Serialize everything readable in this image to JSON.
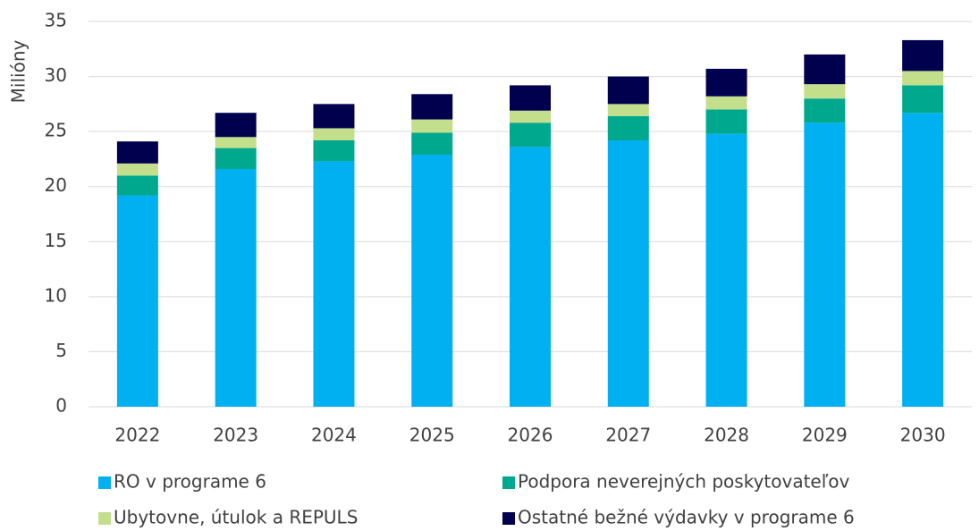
{
  "chart_data": {
    "type": "stacked_bar",
    "y_label": "Milióny",
    "categories": [
      "2022",
      "2023",
      "2024",
      "2025",
      "2026",
      "2027",
      "2028",
      "2029",
      "2030"
    ],
    "series": [
      {
        "name": "RO v programe 6",
        "color": "#00b0f0",
        "values": [
          19.2,
          21.6,
          22.3,
          22.9,
          23.6,
          24.2,
          24.8,
          25.8,
          26.7
        ]
      },
      {
        "name": "Podpora neverejných poskytovateľov",
        "color": "#00a88e",
        "values": [
          1.8,
          1.9,
          1.9,
          2.0,
          2.2,
          2.2,
          2.2,
          2.2,
          2.5
        ]
      },
      {
        "name": "Ubytovne, útulok a REPULS",
        "color": "#c3df8c",
        "values": [
          1.1,
          1.0,
          1.1,
          1.2,
          1.1,
          1.1,
          1.2,
          1.3,
          1.3
        ]
      },
      {
        "name": "Ostatné bežné výdavky v programe 6",
        "color": "#00004f",
        "values": [
          2.0,
          2.2,
          2.2,
          2.3,
          2.3,
          2.5,
          2.5,
          2.7,
          2.8
        ]
      }
    ],
    "ylim": [
      0,
      35
    ],
    "yticks": [
      0,
      5,
      10,
      15,
      20,
      25,
      30,
      35
    ],
    "grid": true
  }
}
